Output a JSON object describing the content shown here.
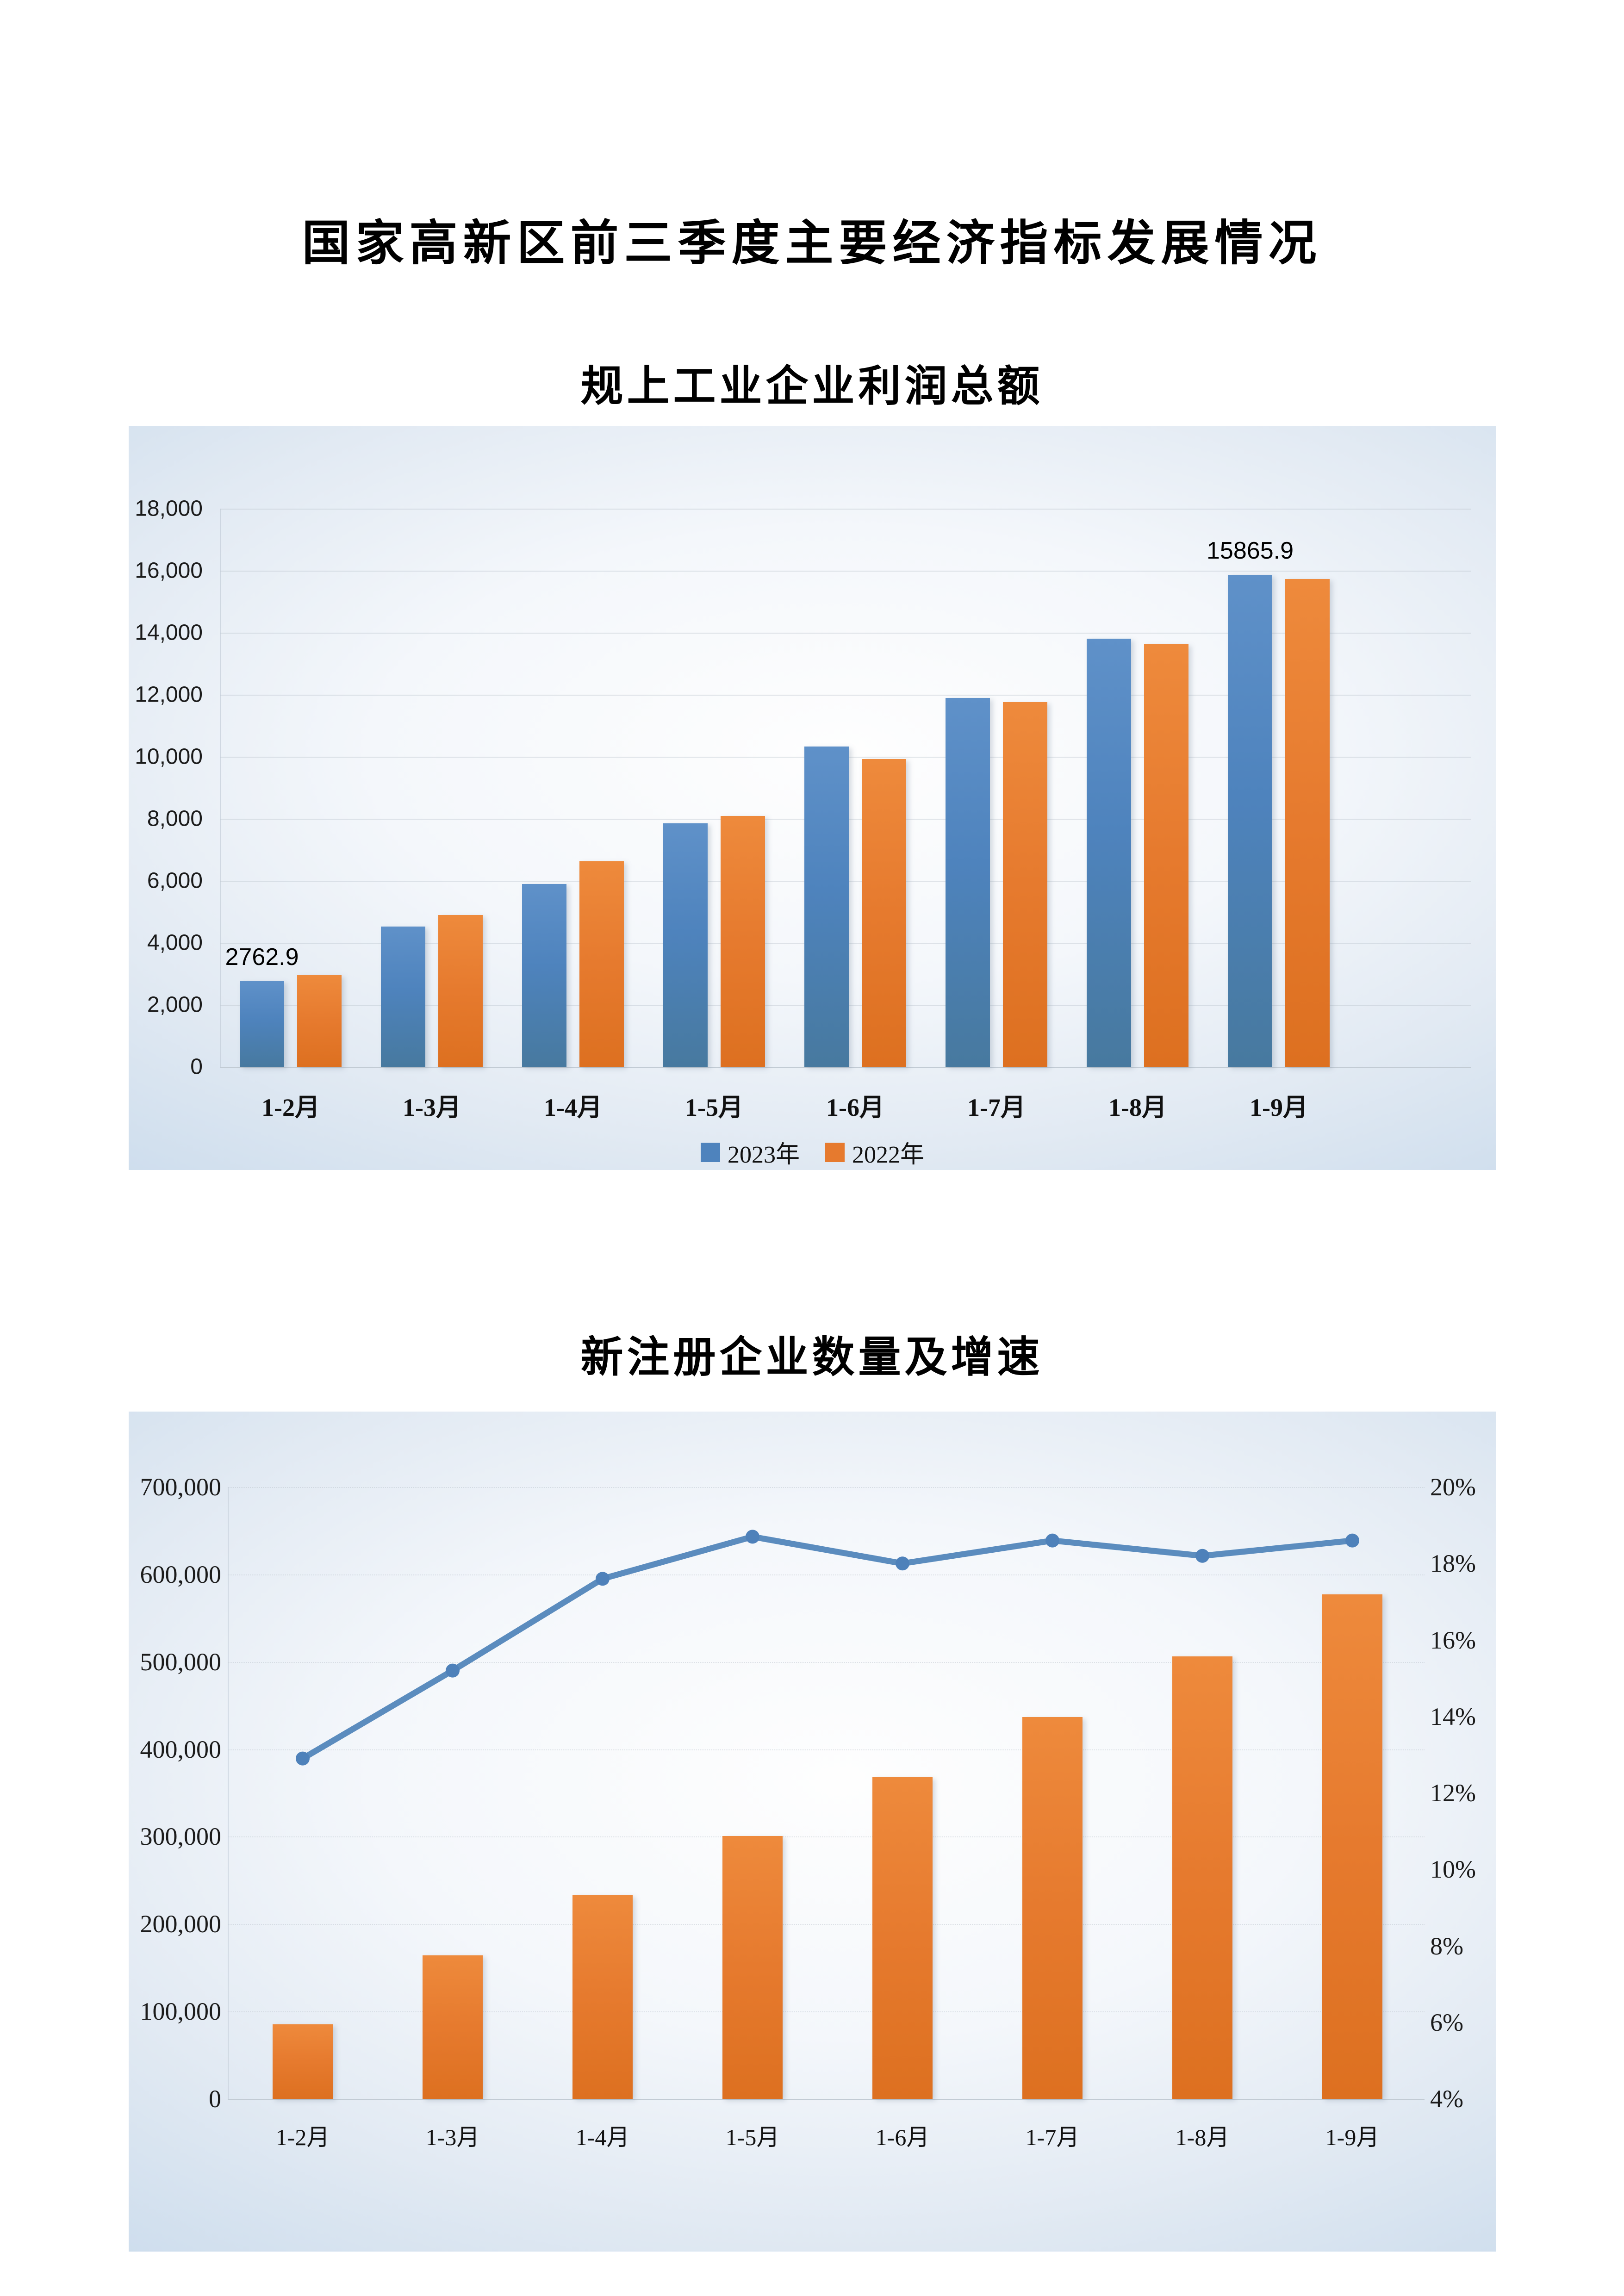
{
  "page": {
    "title": "国家高新区前三季度主要经济指标发展情况"
  },
  "chart_data": [
    {
      "type": "bar",
      "title": "规上工业企业利润总额",
      "categories": [
        "1-2月",
        "1-3月",
        "1-4月",
        "1-5月",
        "1-6月",
        "1-7月",
        "1-8月",
        "1-9月"
      ],
      "series": [
        {
          "name": "2023年",
          "color": "#4E83BD",
          "values": [
            2762.9,
            4520,
            5890,
            7850,
            10330,
            11890,
            13810,
            15865.9
          ]
        },
        {
          "name": "2022年",
          "color": "#E67A2E",
          "values": [
            2960,
            4900,
            6620,
            8090,
            9930,
            11760,
            13620,
            15730
          ]
        }
      ],
      "data_labels": [
        {
          "series": 0,
          "index": 0,
          "text": "2762.9"
        },
        {
          "series": 0,
          "index": 7,
          "text": "15865.9"
        }
      ],
      "ylim": [
        0,
        18000
      ],
      "ytick_step": 2000,
      "yticks": [
        "0",
        "2,000",
        "4,000",
        "6,000",
        "8,000",
        "10,000",
        "12,000",
        "14,000",
        "16,000",
        "18,000"
      ],
      "grid": true,
      "legend_position": "bottom"
    },
    {
      "type": "combo",
      "title": "新注册企业数量及增速",
      "categories": [
        "1-2月",
        "1-3月",
        "1-4月",
        "1-5月",
        "1-6月",
        "1-7月",
        "1-8月",
        "1-9月"
      ],
      "bar_series": {
        "name": "新注册企业数量",
        "color": "#E67A2E",
        "values": [
          85000,
          164000,
          233000,
          301000,
          368000,
          437000,
          506000,
          577000
        ]
      },
      "line_series": {
        "name": "增速",
        "color": "#5B8CBE",
        "values": [
          12.9,
          15.2,
          17.6,
          18.7,
          18.0,
          18.6,
          18.2,
          18.6
        ]
      },
      "left_ylim": [
        0,
        700000
      ],
      "left_ytick_step": 100000,
      "left_yticks": [
        "0",
        "100,000",
        "200,000",
        "300,000",
        "400,000",
        "500,000",
        "600,000",
        "700,000"
      ],
      "right_ylim": [
        4,
        20
      ],
      "right_ytick_step": 2,
      "right_yticks": [
        "4%",
        "6%",
        "8%",
        "10%",
        "12%",
        "14%",
        "16%",
        "18%",
        "20%"
      ],
      "grid": true,
      "legend_position": "none"
    }
  ]
}
